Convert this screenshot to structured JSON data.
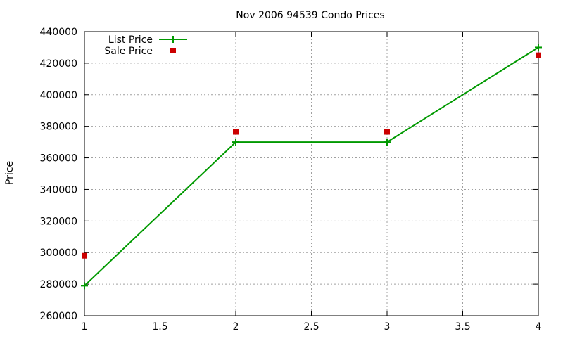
{
  "chart_data": {
    "type": "line",
    "title": "Nov 2006 94539 Condo Prices",
    "xlabel": "",
    "ylabel": "Price",
    "xlim": [
      1,
      4
    ],
    "ylim": [
      260000,
      440000
    ],
    "x_ticks": [
      1,
      1.5,
      2,
      2.5,
      3,
      3.5,
      4
    ],
    "x_tick_labels": [
      "1",
      "1.5",
      "2",
      "2.5",
      "3",
      "3.5",
      "4"
    ],
    "y_ticks": [
      260000,
      280000,
      300000,
      320000,
      340000,
      360000,
      380000,
      400000,
      420000,
      440000
    ],
    "y_tick_labels": [
      "260000",
      "280000",
      "300000",
      "320000",
      "340000",
      "360000",
      "380000",
      "400000",
      "420000",
      "440000"
    ],
    "grid": true,
    "legend_position": "top-left",
    "series": [
      {
        "name": "List Price",
        "style": "line-with-plus-markers",
        "color": "#009900",
        "x": [
          1,
          2,
          3,
          4
        ],
        "values": [
          279000,
          370000,
          370000,
          430000
        ]
      },
      {
        "name": "Sale Price",
        "style": "square-markers",
        "color": "#cc0000",
        "x": [
          1,
          2,
          3,
          4
        ],
        "values": [
          298000,
          376500,
          376500,
          425000
        ]
      }
    ]
  }
}
